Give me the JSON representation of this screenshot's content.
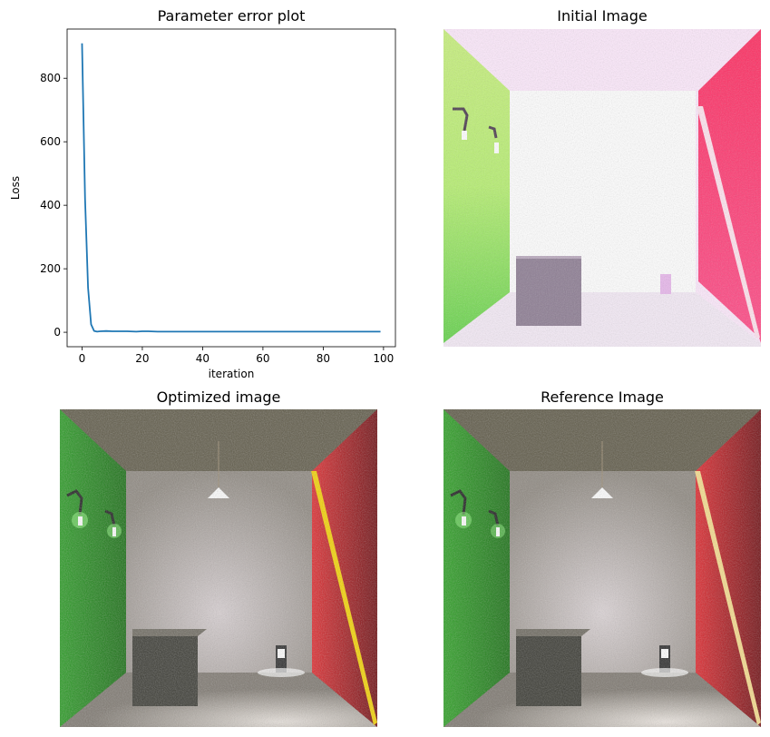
{
  "figure": {
    "titles": {
      "plot": "Parameter error plot",
      "initial": "Initial Image",
      "optimized": "Optimized image",
      "reference": "Reference Image"
    }
  },
  "chart_data": [
    {
      "type": "line",
      "title": "Parameter error plot",
      "xlabel": "iteration",
      "ylabel": "Loss",
      "xlim": [
        -4.95,
        103.95
      ],
      "ylim": [
        -45.5,
        955
      ],
      "xticks": [
        0,
        20,
        40,
        60,
        80,
        100
      ],
      "yticks": [
        0,
        200,
        400,
        600,
        800
      ],
      "grid": false,
      "legend": "none",
      "series": [
        {
          "color": "#1f77b4",
          "x": [
            0,
            1,
            2,
            3,
            4,
            5,
            6,
            8,
            10,
            12,
            15,
            18,
            20,
            22,
            25,
            30,
            40,
            50,
            60,
            70,
            80,
            90,
            99
          ],
          "values": [
            910,
            420,
            140,
            25,
            4,
            2,
            3,
            4,
            3,
            3,
            3,
            2,
            3,
            3,
            2,
            2,
            2,
            2,
            2,
            2,
            2,
            2,
            2
          ]
        }
      ]
    }
  ],
  "images": {
    "initial": {
      "left_wall": "#b8f07a",
      "right_wall": "#ff3c6c",
      "ceiling": "#fde8fb",
      "floor": "#f7eef8",
      "box": "#8a7a8e",
      "light_strip": "#ffe0ee"
    },
    "optimized": {
      "left_wall": "#1f8c1a",
      "right_wall": "#b0141a",
      "ceiling": "#7a7460",
      "floor": "#8c8478",
      "box": "#3a3a34",
      "light_strip": "#f2d000"
    },
    "reference": {
      "left_wall": "#2a8c1c",
      "right_wall": "#b51a1e",
      "ceiling": "#7a7460",
      "floor": "#8c8478",
      "box": "#3a3a34",
      "light_strip": "#f2d890"
    }
  }
}
